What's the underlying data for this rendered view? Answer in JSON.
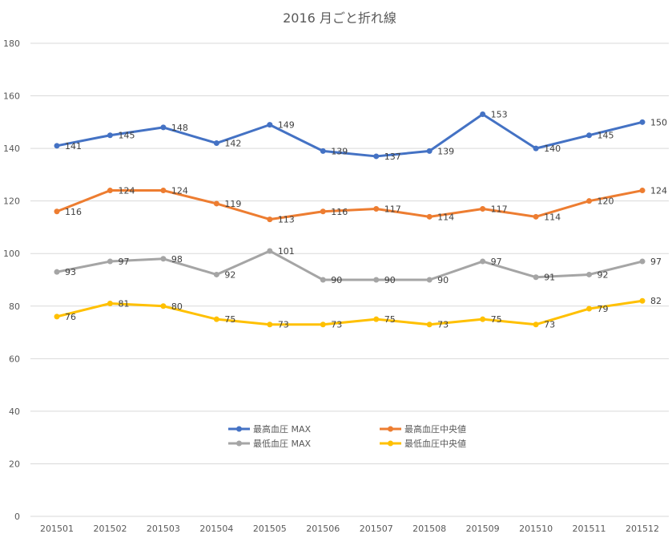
{
  "chart_data": {
    "type": "line",
    "title": "2016 月ごと折れ線",
    "categories": [
      "201501",
      "201502",
      "201503",
      "201504",
      "201505",
      "201506",
      "201507",
      "201508",
      "201509",
      "201510",
      "201511",
      "201512"
    ],
    "ylim": [
      0,
      180
    ],
    "yticks": [
      0,
      20,
      40,
      60,
      80,
      100,
      120,
      140,
      160,
      180
    ],
    "grid": true,
    "legend_position": "bottom-center",
    "series": [
      {
        "name": "最高血圧 MAX",
        "color": "#4472c4",
        "values": [
          141,
          145,
          148,
          142,
          149,
          139,
          137,
          139,
          153,
          140,
          145,
          150
        ]
      },
      {
        "name": "最高血圧中央値",
        "color": "#ed7d31",
        "values": [
          116,
          124,
          124,
          119,
          113,
          116,
          117,
          114,
          117,
          114,
          120,
          124
        ]
      },
      {
        "name": "最低血圧 MAX",
        "color": "#a5a5a5",
        "values": [
          93,
          97,
          98,
          92,
          101,
          90,
          90,
          90,
          97,
          91,
          92,
          97
        ]
      },
      {
        "name": "最低血圧中央値",
        "color": "#ffc000",
        "values": [
          76,
          81,
          80,
          75,
          73,
          73,
          75,
          73,
          75,
          73,
          79,
          82
        ]
      }
    ]
  }
}
